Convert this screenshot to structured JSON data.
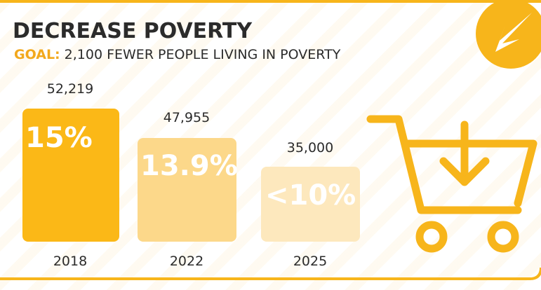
{
  "title": "DECREASE POVERTY",
  "goal": {
    "label": "GOAL:",
    "text": "2,100 FEWER PEOPLE LIVING IN POVERTY"
  },
  "items": [
    {
      "year": "2018",
      "count": "52,219",
      "percent": "15%"
    },
    {
      "year": "2022",
      "count": "47,955",
      "percent": "13.9%"
    },
    {
      "year": "2025",
      "count": "35,000",
      "percent": "<10%"
    }
  ]
}
